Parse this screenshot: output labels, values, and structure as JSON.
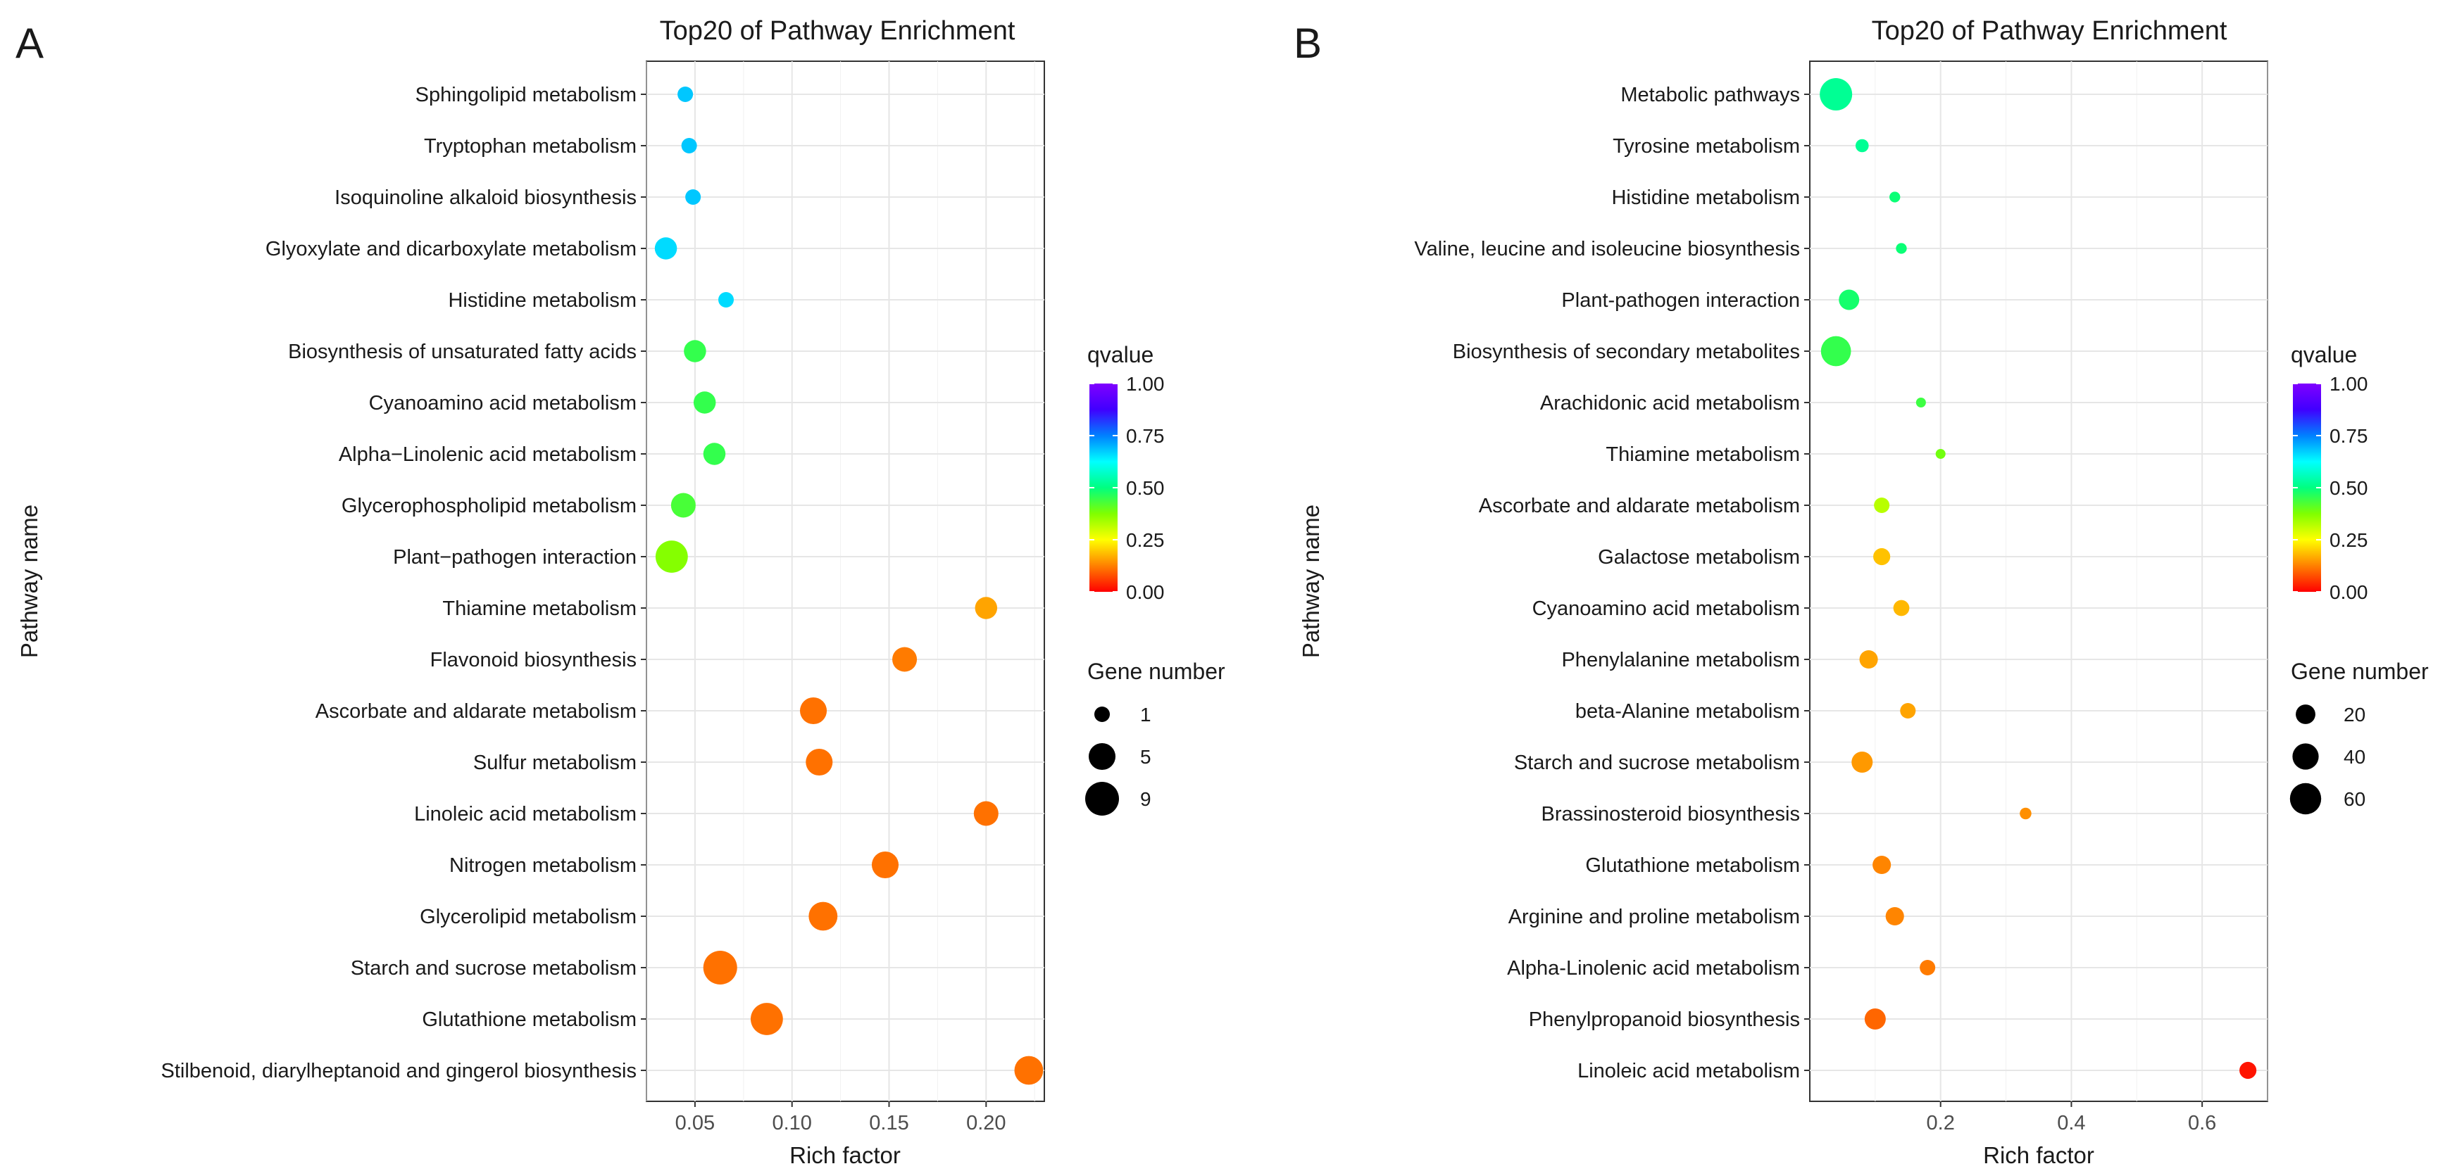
{
  "chart_data": [
    {
      "type": "scatter",
      "panel": "A",
      "title": "Top20 of Pathway Enrichment",
      "xlabel": "Rich factor",
      "ylabel": "Pathway name",
      "xlim": [
        0.025,
        0.23
      ],
      "xticks": [
        0.05,
        0.1,
        0.15,
        0.2
      ],
      "xtick_labels": [
        "0.05",
        "0.10",
        "0.15",
        "0.20"
      ],
      "grid": true,
      "pathways": [
        "Sphingolipid metabolism",
        "Tryptophan metabolism",
        "Isoquinoline alkaloid biosynthesis",
        "Glyoxylate and dicarboxylate metabolism",
        "Histidine metabolism",
        "Biosynthesis of unsaturated fatty acids",
        "Cyanoamino acid metabolism",
        "Alpha−Linolenic acid metabolism",
        "Glycerophospholipid metabolism",
        "Plant−pathogen interaction",
        "Thiamine metabolism",
        "Flavonoid biosynthesis",
        "Ascorbate and aldarate metabolism",
        "Sulfur metabolism",
        "Linoleic acid metabolism",
        "Nitrogen metabolism",
        "Glycerolipid metabolism",
        "Starch and sucrose metabolism",
        "Glutathione metabolism",
        "Stilbenoid, diarylheptanoid and gingerol biosynthesis"
      ],
      "rich_factor": [
        0.045,
        0.047,
        0.049,
        0.035,
        0.066,
        0.05,
        0.055,
        0.06,
        0.044,
        0.038,
        0.2,
        0.158,
        0.111,
        0.114,
        0.2,
        0.148,
        0.116,
        0.063,
        0.087,
        0.222
      ],
      "qvalue": [
        0.68,
        0.68,
        0.68,
        0.66,
        0.66,
        0.45,
        0.45,
        0.45,
        0.43,
        0.37,
        0.16,
        0.12,
        0.11,
        0.11,
        0.11,
        0.11,
        0.11,
        0.11,
        0.11,
        0.11
      ],
      "gene_number": [
        1,
        1,
        1,
        3,
        1,
        3,
        3,
        3,
        4,
        8,
        3,
        4,
        5,
        5,
        4,
        5,
        6,
        9,
        8,
        6
      ],
      "legend": {
        "color_title": "qvalue",
        "color_range": [
          0,
          1
        ],
        "color_ticks": [
          "1.00",
          "0.75",
          "0.50",
          "0.25",
          "0.00"
        ],
        "size_title": "Gene  number",
        "size_values": [
          1,
          5,
          9
        ],
        "size_labels": [
          "1",
          "5",
          "9"
        ],
        "position": "right"
      }
    },
    {
      "type": "scatter",
      "panel": "B",
      "title": "Top20 of Pathway Enrichment",
      "xlabel": "Rich factor",
      "ylabel": "Pathway name",
      "xlim": [
        0.0,
        0.7
      ],
      "xticks": [
        0.2,
        0.4,
        0.6
      ],
      "xtick_labels": [
        "0.2",
        "0.4",
        "0.6"
      ],
      "grid": true,
      "pathways": [
        "Metabolic pathways",
        "Tyrosine metabolism",
        "Histidine metabolism",
        "Valine, leucine and isoleucine biosynthesis",
        "Plant-pathogen interaction",
        "Biosynthesis of secondary metabolites",
        "Arachidonic acid metabolism",
        "Thiamine metabolism",
        "Ascorbate and aldarate metabolism",
        "Galactose metabolism",
        "Cyanoamino acid metabolism",
        "Phenylalanine metabolism",
        "beta-Alanine metabolism",
        "Starch and sucrose metabolism",
        "Brassinosteroid biosynthesis",
        "Glutathione metabolism",
        "Arginine and proline metabolism",
        "Alpha-Linolenic acid metabolism",
        "Phenylpropanoid biosynthesis",
        "Linoleic acid metabolism"
      ],
      "rich_factor": [
        0.04,
        0.08,
        0.13,
        0.14,
        0.06,
        0.04,
        0.17,
        0.2,
        0.11,
        0.11,
        0.14,
        0.09,
        0.15,
        0.08,
        0.33,
        0.11,
        0.13,
        0.18,
        0.1,
        0.67
      ],
      "qvalue": [
        0.52,
        0.52,
        0.49,
        0.49,
        0.48,
        0.45,
        0.44,
        0.39,
        0.32,
        0.19,
        0.18,
        0.16,
        0.16,
        0.15,
        0.14,
        0.13,
        0.13,
        0.12,
        0.1,
        0.02
      ],
      "gene_number": [
        65,
        7,
        4,
        4,
        22,
        55,
        3,
        3,
        11,
        14,
        12,
        17,
        11,
        24,
        5,
        17,
        17,
        11,
        24,
        14
      ],
      "legend": {
        "color_title": "qvalue",
        "color_range": [
          0,
          1
        ],
        "color_ticks": [
          "1.00",
          "0.75",
          "0.50",
          "0.25",
          "0.00"
        ],
        "size_title": "Gene  number",
        "size_values": [
          20,
          40,
          60
        ],
        "size_labels": [
          "20",
          "40",
          "60"
        ],
        "position": "right"
      }
    }
  ]
}
